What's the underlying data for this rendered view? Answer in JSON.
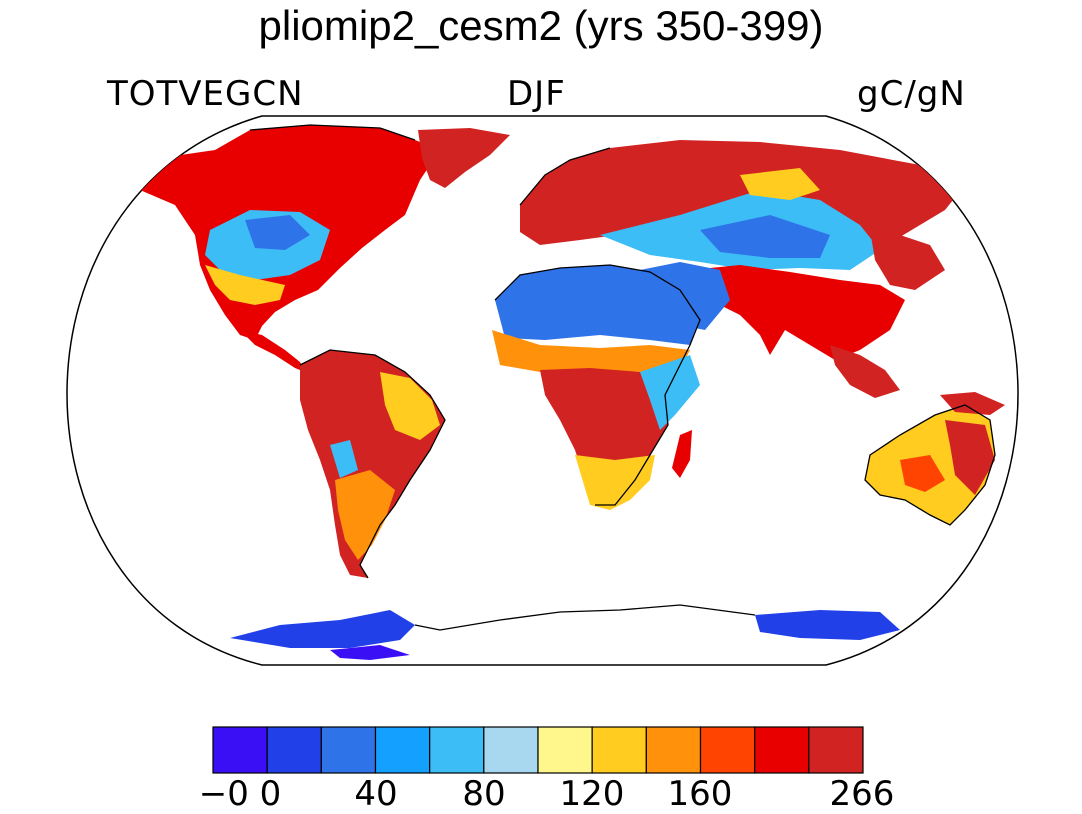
{
  "title": "pliomip2_cesm2 (yrs 350-399)",
  "subtitle_left": "TOTVEGCN",
  "subtitle_center": "DJF",
  "subtitle_right": "gC/gN",
  "colors": {
    "ocean": "#ffffff",
    "outline": "#000000",
    "palette": [
      "#3b0ff5",
      "#2140e8",
      "#2f73e8",
      "#14a0ff",
      "#3cbdf5",
      "#a8d8f0",
      "#fff68c",
      "#ffcc1f",
      "#ff920a",
      "#ff4300",
      "#e80000",
      "#d22323"
    ]
  },
  "colorbar": {
    "tick_labels": [
      "−0 0",
      "40",
      "80",
      "120",
      "160",
      "266"
    ]
  }
}
